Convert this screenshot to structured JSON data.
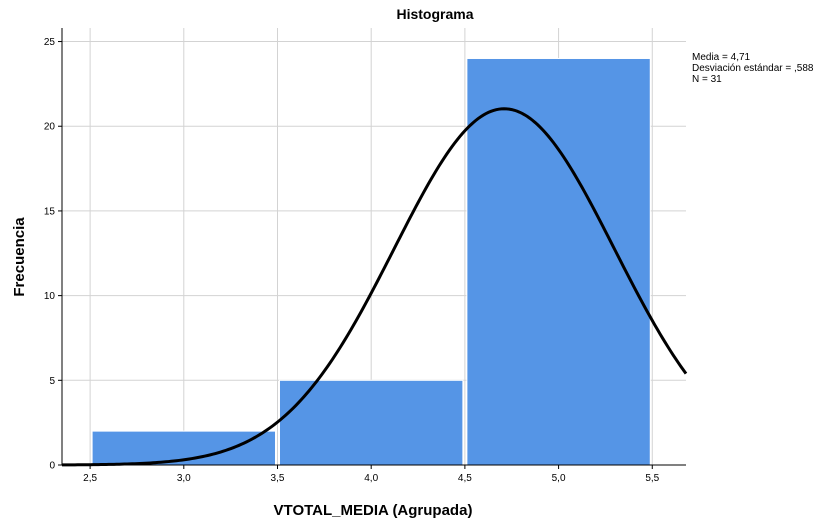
{
  "chart_data": {
    "type": "bar",
    "title": "Histograma",
    "xlabel": "VTOTAL_MEDIA (Agrupada)",
    "ylabel": "Frecuencia",
    "xlim": [
      2.35,
      5.68
    ],
    "ylim": [
      0,
      25.8
    ],
    "x_ticks": [
      {
        "value": 2.5,
        "label": "2,5"
      },
      {
        "value": 3.0,
        "label": "3,0"
      },
      {
        "value": 3.5,
        "label": "3,5"
      },
      {
        "value": 4.0,
        "label": "4,0"
      },
      {
        "value": 4.5,
        "label": "4,5"
      },
      {
        "value": 5.0,
        "label": "5,0"
      },
      {
        "value": 5.5,
        "label": "5,5"
      }
    ],
    "y_ticks": [
      {
        "value": 0,
        "label": "0"
      },
      {
        "value": 5,
        "label": "5"
      },
      {
        "value": 10,
        "label": "10"
      },
      {
        "value": 15,
        "label": "15"
      },
      {
        "value": 20,
        "label": "20"
      },
      {
        "value": 25,
        "label": "25"
      }
    ],
    "bins": [
      {
        "from": 2.5,
        "to": 3.5,
        "count": 2
      },
      {
        "from": 3.5,
        "to": 4.5,
        "count": 5
      },
      {
        "from": 4.5,
        "to": 5.5,
        "count": 24
      }
    ],
    "normal_curve": {
      "mean": 4.71,
      "sd": 0.588,
      "n": 31,
      "bin_width": 1.0
    },
    "stats": {
      "mean": "Media = 4,71",
      "sd": "Desviación estándar = ,588",
      "n": "N = 31"
    },
    "grid": true,
    "bar_color": "#5595e6",
    "curve_color": "#000000",
    "grid_color": "#d3d3d3"
  }
}
